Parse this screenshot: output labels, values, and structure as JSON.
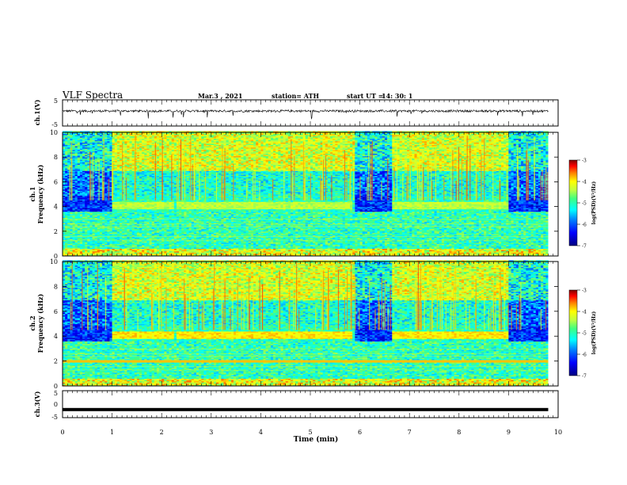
{
  "header": {
    "title": "VLF Spectra",
    "date": "Mar.3 , 2021",
    "station": "station= ATH",
    "start_label": "start UT =",
    "start_value": "14: 30: 1"
  },
  "chart_data": [
    {
      "type": "line",
      "panel": "ch1-waveform",
      "ylabel": "ch.1(V)",
      "ylim": [
        -5,
        5
      ],
      "yticks": [
        "5",
        "-5"
      ],
      "xlim": [
        0,
        10
      ],
      "description_values": {
        "baseline": 0.6,
        "noise": "bursty spikes up to about -3"
      }
    },
    {
      "type": "heatmap",
      "panel": "ch1-spectrogram",
      "ylabel": "ch.1\nFrequency (kHz)",
      "ylim": [
        0,
        10
      ],
      "yticks": [
        "0",
        "2",
        "4",
        "6",
        "8",
        "10"
      ],
      "xlim": [
        0,
        10
      ],
      "colorbar": {
        "label": "log(PSD)(V²/Hz)",
        "range": [
          -7,
          -3
        ],
        "ticks": [
          "-3",
          "-4",
          "-5",
          "-6",
          "-7"
        ]
      },
      "quiet_intervals_min": [
        [
          0.0,
          1.0
        ],
        [
          5.9,
          6.65
        ],
        [
          9.0,
          9.8
        ]
      ],
      "tone_band_khz": 4.0,
      "tone_intervals_min": [
        [
          1.0,
          2.25
        ],
        [
          2.3,
          5.85
        ],
        [
          6.65,
          9.0
        ]
      ],
      "time_end_min": 9.8
    },
    {
      "type": "heatmap",
      "panel": "ch2-spectrogram",
      "ylabel": "ch.2\nFrequency (kHz)",
      "ylim": [
        0,
        10
      ],
      "yticks": [
        "0",
        "2",
        "4",
        "6",
        "8",
        "10"
      ],
      "xlim": [
        0,
        10
      ],
      "colorbar": {
        "label": "log(PSD)(V²/Hz)",
        "range": [
          -7,
          -3
        ],
        "ticks": [
          "-3",
          "-4",
          "-5",
          "-6",
          "-7"
        ]
      },
      "quiet_intervals_min": [
        [
          0.0,
          1.0
        ],
        [
          5.9,
          6.65
        ],
        [
          9.0,
          9.8
        ]
      ],
      "tone_band_khz": 4.0,
      "tone_intervals_min": [
        [
          1.0,
          2.25
        ],
        [
          2.3,
          5.85
        ],
        [
          6.65,
          9.0
        ]
      ],
      "line_2khz": true,
      "time_end_min": 9.8
    },
    {
      "type": "line",
      "panel": "ch3-waveform",
      "ylabel": "ch.3(V)",
      "ylim": [
        -5,
        5
      ],
      "yticks": [
        "5",
        "0",
        "-5"
      ],
      "xlim": [
        0,
        10
      ],
      "values_constant": -2,
      "time_end_min": 9.8
    }
  ],
  "xaxis": {
    "label": "Time (min)",
    "ticks": [
      "0",
      "1",
      "2",
      "3",
      "4",
      "5",
      "6",
      "7",
      "8",
      "9",
      "10"
    ]
  },
  "colors": {
    "colormap": [
      "#000080",
      "#0000ff",
      "#0080ff",
      "#00ffff",
      "#40ff80",
      "#c0ff40",
      "#ffff00",
      "#ff8000",
      "#ff0000",
      "#800000"
    ]
  }
}
